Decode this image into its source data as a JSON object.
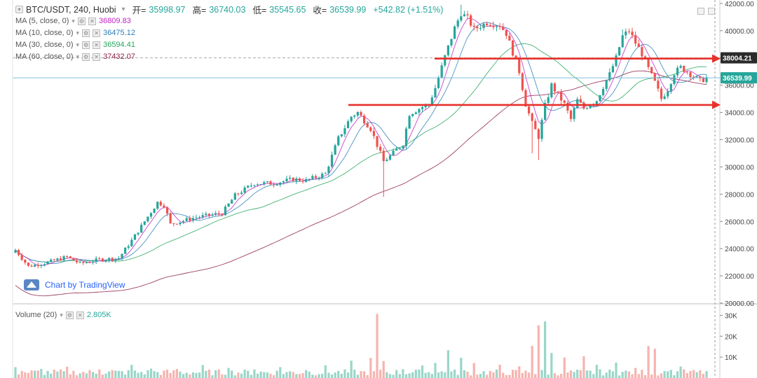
{
  "header": {
    "symbol": "BTC/USDT, 240, Huobi",
    "open_label": "开=",
    "open": "35998.97",
    "high_label": "高=",
    "high": "36740.03",
    "low_label": "低=",
    "low": "35545.65",
    "close_label": "收=",
    "close": "36539.99",
    "change": "+542.82 (+1.51%)"
  },
  "indicators": [
    {
      "label": "MA (5, close, 0)",
      "value": "36809.83",
      "color": "#c026c6"
    },
    {
      "label": "MA (10, close, 0)",
      "value": "36475.12",
      "color": "#2c7fb8"
    },
    {
      "label": "MA (30, close, 0)",
      "value": "36594.41",
      "color": "#26a65b"
    },
    {
      "label": "MA (60, close, 0)",
      "value": "37432.07",
      "color": "#8e1f4a"
    }
  ],
  "volume_legend": {
    "label": "Volume (20)",
    "value": "2.805K",
    "color": "#26a69a"
  },
  "watermark": "Chart by TradingView",
  "colors": {
    "up": "#26a69a",
    "down": "#ef5350",
    "up_vol": "#9ad6c8",
    "down_vol": "#f6b4b0",
    "annotation": "#e8302a",
    "ma5": "#c026c6",
    "ma10": "#2c7fb8",
    "ma30": "#26a65b",
    "ma60": "#8e1f4a"
  },
  "chart_data": {
    "type": "candlestick",
    "price_axis": {
      "ticks": [
        20000,
        22000,
        24000,
        26000,
        28000,
        30000,
        32000,
        34000,
        36000,
        38000,
        40000,
        42000
      ],
      "tick_labels": [
        "20000.00",
        "22000.00",
        "24000.00",
        "26000.00",
        "28000.00",
        "30000.00",
        "32000.00",
        "34000.00",
        "36000.00",
        "38000.00",
        "40000.00",
        "42000.00"
      ],
      "ylim": [
        19950,
        42150
      ]
    },
    "price_labels": [
      {
        "value": 38004.21,
        "text": "38004.21",
        "style": "dark"
      },
      {
        "value": 36539.99,
        "text": "36539.99",
        "style": "green"
      }
    ],
    "volume_axis": {
      "tick_labels": [
        "10K",
        "20K",
        "30K"
      ],
      "ticks": [
        10000,
        20000,
        30000
      ],
      "ylim": [
        0,
        33500
      ]
    },
    "annotations": {
      "resistance_arrow": 37950,
      "support_arrow": 34550
    },
    "close_path": [
      [
        0,
        23900
      ],
      [
        4,
        22700
      ],
      [
        10,
        23000
      ],
      [
        16,
        23400
      ],
      [
        20,
        22900
      ],
      [
        26,
        23200
      ],
      [
        32,
        23300
      ],
      [
        36,
        24600
      ],
      [
        40,
        26000
      ],
      [
        44,
        27400
      ],
      [
        46,
        27200
      ],
      [
        48,
        25800
      ],
      [
        56,
        26300
      ],
      [
        64,
        26600
      ],
      [
        68,
        27900
      ],
      [
        74,
        28800
      ],
      [
        80,
        28800
      ],
      [
        86,
        29100
      ],
      [
        90,
        29000
      ],
      [
        96,
        29500
      ],
      [
        100,
        32100
      ],
      [
        104,
        33700
      ],
      [
        106,
        34000
      ],
      [
        110,
        32800
      ],
      [
        112,
        31600
      ],
      [
        114,
        30400
      ],
      [
        116,
        30800
      ],
      [
        120,
        31700
      ],
      [
        122,
        33900
      ],
      [
        126,
        34400
      ],
      [
        128,
        34600
      ],
      [
        130,
        35800
      ],
      [
        133,
        38100
      ],
      [
        136,
        40200
      ],
      [
        138,
        41300
      ],
      [
        140,
        40900
      ],
      [
        142,
        40100
      ],
      [
        146,
        40600
      ],
      [
        150,
        40400
      ],
      [
        152,
        39800
      ],
      [
        154,
        38400
      ],
      [
        156,
        37000
      ],
      [
        158,
        34600
      ],
      [
        160,
        33200
      ],
      [
        162,
        32200
      ],
      [
        164,
        34500
      ],
      [
        166,
        36000
      ],
      [
        170,
        34600
      ],
      [
        172,
        33500
      ],
      [
        174,
        34900
      ],
      [
        176,
        34300
      ],
      [
        180,
        34900
      ],
      [
        182,
        35900
      ],
      [
        184,
        36800
      ],
      [
        186,
        38000
      ],
      [
        188,
        39600
      ],
      [
        190,
        40000
      ],
      [
        192,
        39100
      ],
      [
        194,
        38300
      ],
      [
        196,
        37200
      ],
      [
        198,
        36200
      ],
      [
        200,
        35000
      ],
      [
        202,
        35700
      ],
      [
        204,
        36900
      ],
      [
        206,
        37300
      ],
      [
        208,
        37000
      ],
      [
        212,
        36300
      ],
      [
        214,
        36540
      ]
    ],
    "volume_spikes": [
      [
        0,
        5200
      ],
      [
        2,
        3400
      ],
      [
        8,
        4400
      ],
      [
        16,
        5400
      ],
      [
        26,
        4100
      ],
      [
        30,
        3800
      ],
      [
        36,
        6300
      ],
      [
        42,
        4500
      ],
      [
        50,
        4300
      ],
      [
        58,
        6200
      ],
      [
        66,
        4800
      ],
      [
        74,
        4100
      ],
      [
        82,
        5200
      ],
      [
        90,
        3800
      ],
      [
        96,
        6100
      ],
      [
        104,
        8300
      ],
      [
        110,
        9600
      ],
      [
        112,
        30700
      ],
      [
        114,
        8100
      ],
      [
        120,
        4200
      ],
      [
        126,
        6000
      ],
      [
        130,
        7200
      ],
      [
        134,
        13300
      ],
      [
        138,
        9700
      ],
      [
        142,
        7200
      ],
      [
        150,
        6400
      ],
      [
        156,
        5600
      ],
      [
        160,
        15400
      ],
      [
        162,
        25200
      ],
      [
        164,
        27100
      ],
      [
        166,
        12000
      ],
      [
        170,
        9800
      ],
      [
        176,
        10400
      ],
      [
        180,
        6300
      ],
      [
        186,
        7400
      ],
      [
        192,
        4800
      ],
      [
        196,
        15300
      ],
      [
        198,
        14000
      ],
      [
        202,
        3200
      ],
      [
        206,
        5500
      ],
      [
        210,
        3800
      ],
      [
        214,
        3300
      ]
    ]
  }
}
